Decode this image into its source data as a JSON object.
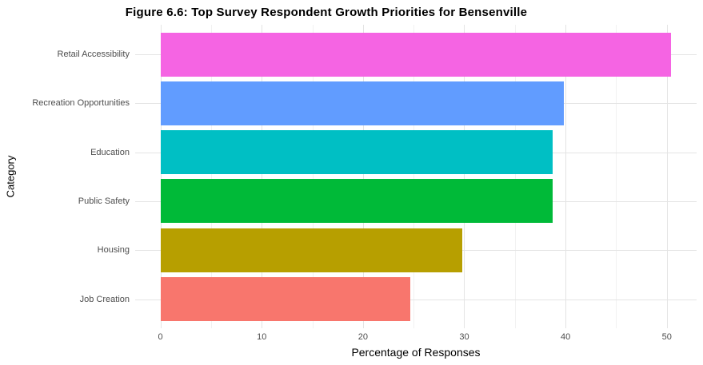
{
  "chart_data": {
    "type": "bar",
    "orientation": "horizontal",
    "title": "Figure 6.6: Top Survey Respondent Growth Priorities for Bensenville",
    "xlabel": "Percentage of Responses",
    "ylabel": "Category",
    "categories": [
      "Retail Accessibility",
      "Recreation Opportunities",
      "Education",
      "Public Safety",
      "Housing",
      "Job Creation"
    ],
    "values": [
      50.4,
      39.8,
      38.7,
      38.7,
      29.8,
      24.7
    ],
    "bar_colors": [
      "#F564E3",
      "#619CFF",
      "#00BFC4",
      "#00BA38",
      "#B79F00",
      "#F8766D"
    ],
    "xlim": [
      0,
      50.4
    ],
    "x_ticks": [
      0,
      10,
      20,
      30,
      40,
      50
    ],
    "x_minor_ticks": [
      5,
      15,
      25,
      35,
      45
    ],
    "grid": true,
    "legend": false,
    "style": {
      "grid_major_color": "#e4e4e4",
      "grid_minor_color": "#f1f1f1",
      "axis_text_color": "#4d4d4d",
      "title_color": "#000000",
      "background": "#ffffff"
    }
  }
}
